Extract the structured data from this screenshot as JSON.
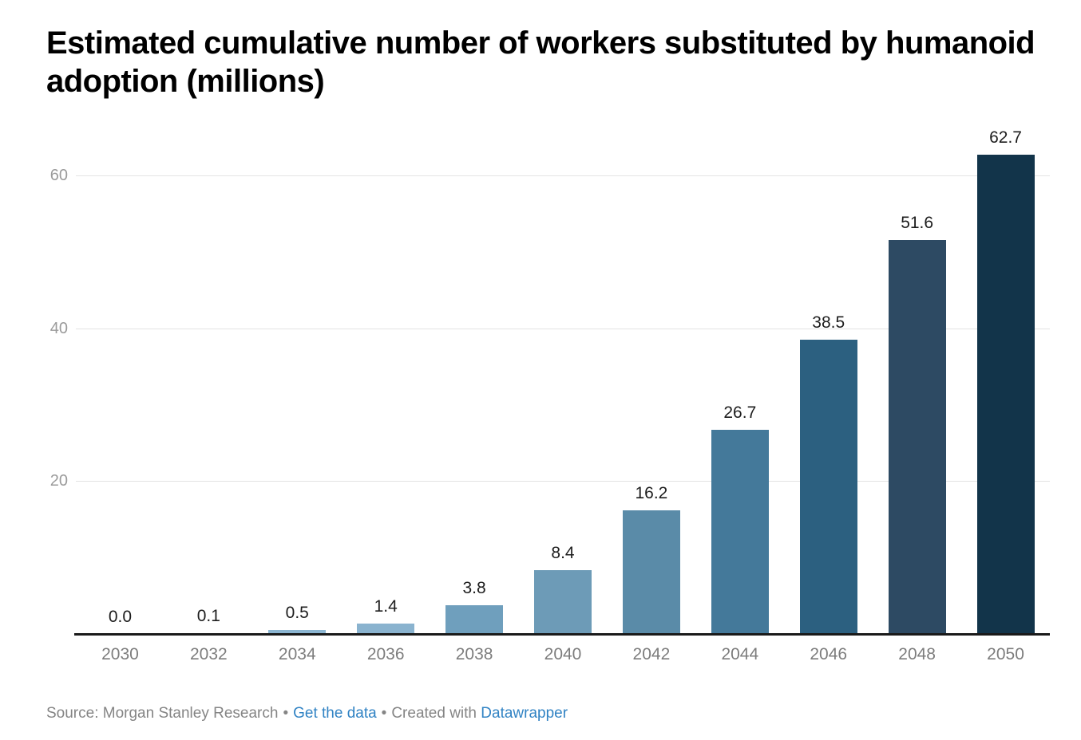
{
  "chart_data": {
    "type": "bar",
    "title": "Estimated cumulative number of workers substituted by humanoid adoption (millions)",
    "categories": [
      "2030",
      "2032",
      "2034",
      "2036",
      "2038",
      "2040",
      "2042",
      "2044",
      "2046",
      "2048",
      "2050"
    ],
    "values": [
      0.0,
      0.1,
      0.5,
      1.4,
      3.8,
      8.4,
      16.2,
      26.7,
      38.5,
      51.6,
      62.7
    ],
    "value_labels": [
      "0.0",
      "0.1",
      "0.5",
      "1.4",
      "3.8",
      "8.4",
      "16.2",
      "26.7",
      "38.5",
      "51.6",
      "62.7"
    ],
    "bar_colors": [
      "#a9cade",
      "#9fc2d8",
      "#8cb6d2",
      "#8ab3cf",
      "#6f9fbd",
      "#6d9bb7",
      "#5a8ba8",
      "#44799a",
      "#2c6080",
      "#2d4a63",
      "#12344a"
    ],
    "y_ticks": [
      20,
      40,
      60
    ],
    "y_tick_labels": [
      "20",
      "40",
      "60"
    ],
    "ylim": [
      0,
      63
    ],
    "grid": true,
    "legend": "none",
    "xlabel": "",
    "ylabel": ""
  },
  "colors": {
    "title": "#000000",
    "axis_line": "#1a1a1a",
    "gridline": "#e3e3e3",
    "y_tick_label": "#9b9b9b",
    "x_tick_label": "#7d7d7d",
    "value_label": "#1d1d1d",
    "footer_text": "#858585",
    "link": "#3183c4"
  },
  "footer": {
    "source_text": "Source: Morgan Stanley Research",
    "separator": "•",
    "get_data_link": "Get the data",
    "created_with_text": "Created with",
    "datawrapper_link": "Datawrapper"
  }
}
